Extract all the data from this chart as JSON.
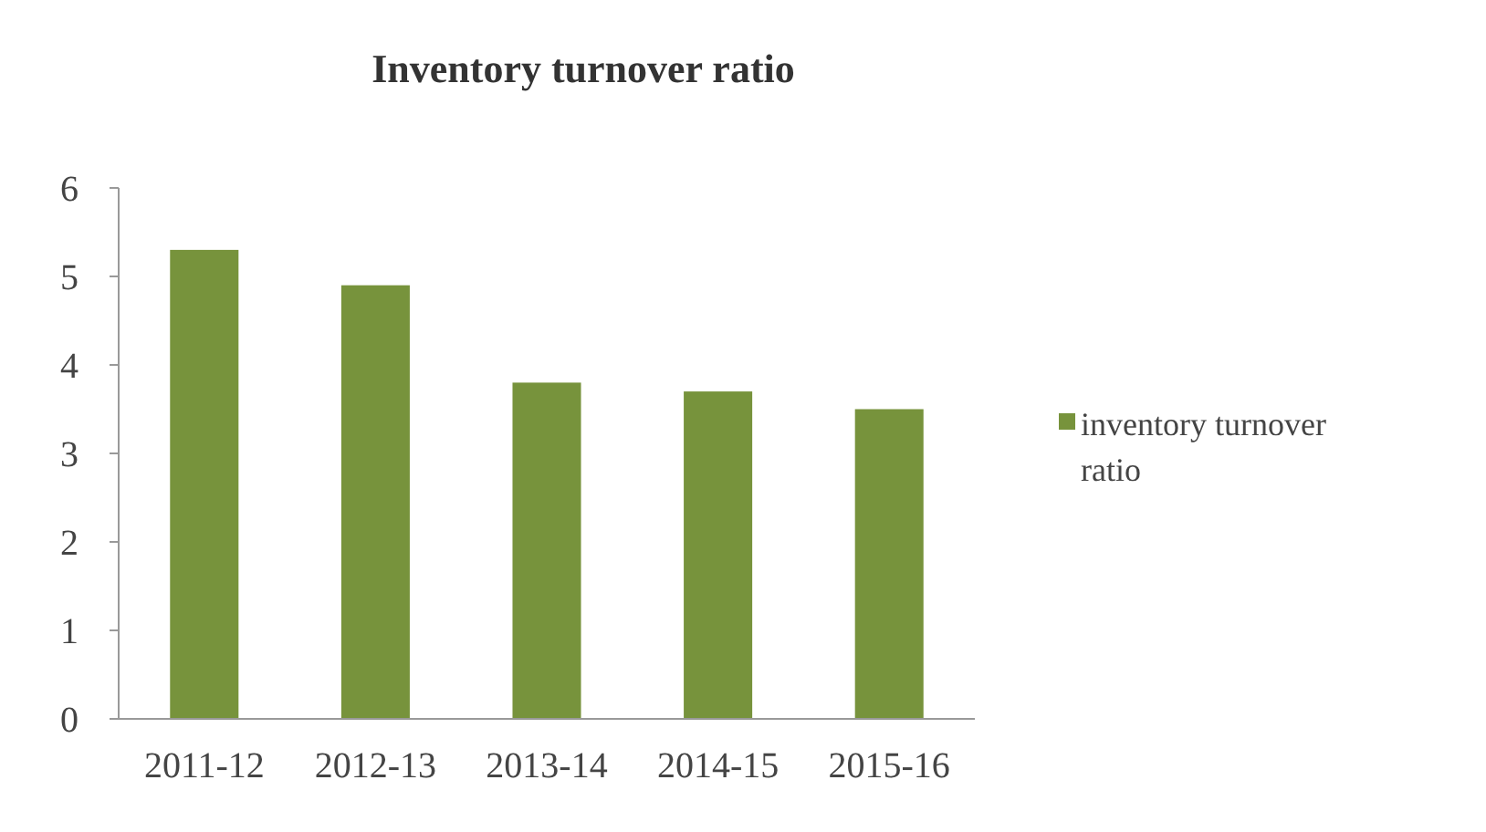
{
  "chart_data": {
    "type": "bar",
    "title": "Inventory turnover ratio",
    "categories": [
      "2011-12",
      "2012-13",
      "2013-14",
      "2014-15",
      "2015-16"
    ],
    "series": [
      {
        "name": "inventory turnover ratio",
        "color": "#77933c",
        "values": [
          5.3,
          4.9,
          3.8,
          3.7,
          3.5
        ]
      }
    ],
    "ylim": [
      0,
      6
    ],
    "yticks": [
      0,
      1,
      2,
      3,
      4,
      5,
      6
    ],
    "grid": false,
    "legend": "right"
  }
}
